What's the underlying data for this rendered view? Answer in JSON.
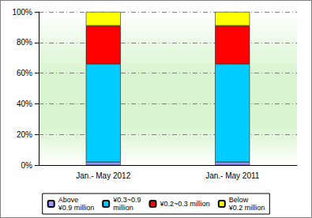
{
  "chart_data": {
    "type": "bar",
    "stacked": true,
    "grid": true,
    "legend": "bottom",
    "categories": [
      "Jan.- May 2012",
      "Jan.- May 2011"
    ],
    "series": [
      {
        "name": "Above\n¥0.9 million",
        "color": "#9999ff",
        "values": [
          2,
          2
        ]
      },
      {
        "name": "¥0.3~0.9\nmillion",
        "color": "#00ccff",
        "values": [
          64,
          64
        ]
      },
      {
        "name": "¥0.2~0.3 million",
        "color": "#ff0000",
        "values": [
          25,
          25
        ]
      },
      {
        "name": "Below\n¥0.2 million",
        "color": "#ffff00",
        "values": [
          9,
          9
        ]
      }
    ],
    "ylim": [
      0,
      100
    ],
    "yticks": [
      {
        "value": 0,
        "label": "0%"
      },
      {
        "value": 20,
        "label": "20%"
      },
      {
        "value": 40,
        "label": "40%"
      },
      {
        "value": 60,
        "label": "60%"
      },
      {
        "value": 80,
        "label": "80%"
      },
      {
        "value": 100,
        "label": "100%"
      }
    ]
  }
}
